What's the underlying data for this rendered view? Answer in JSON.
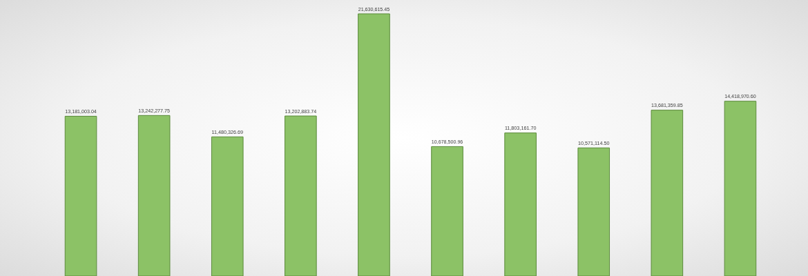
{
  "chart_data": {
    "type": "bar",
    "categories": [
      null,
      null,
      null,
      null,
      null,
      null,
      null,
      null,
      null,
      null
    ],
    "values": [
      13181003.04,
      13242277.75,
      11480326.69,
      13202883.74,
      21630615.45,
      10678500.96,
      11803161.7,
      10571114.5,
      13681359.85,
      14418970.6
    ],
    "value_labels": [
      "13,181,003.04",
      "13,242,277.75",
      "11,480,326.69",
      "13,202,883.74",
      "21,630,615.45",
      "10,678,500.96",
      "11,803,161.70",
      "10,571,114.50",
      "13,681,359.85",
      "14,418,970.60"
    ],
    "color": "#8cc266",
    "legend": false
  }
}
